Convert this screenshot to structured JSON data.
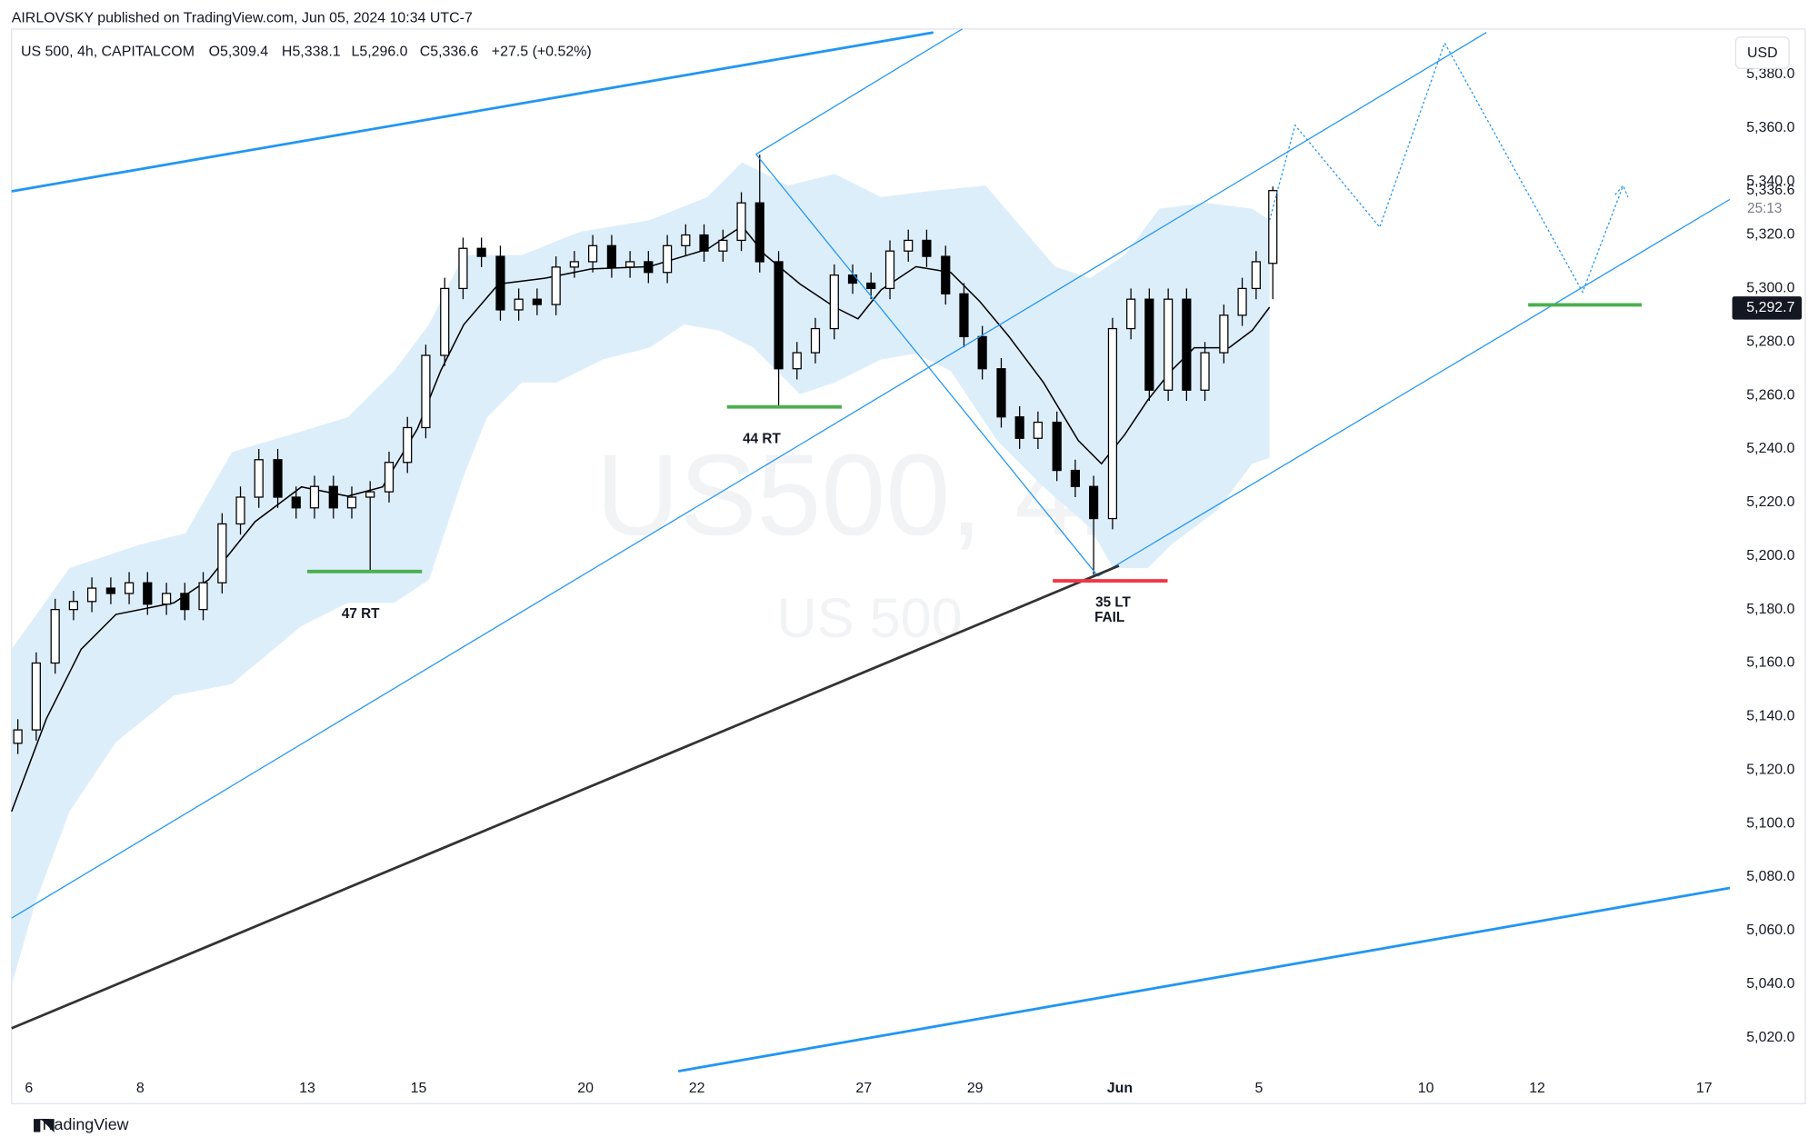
{
  "chart_data": {
    "type": "candlestick",
    "publisher": "AIRLOVSKY published on TradingView.com, Jun 05, 2024 10:34 UTC-7",
    "title": "US 500, 4h, CAPITALCOM",
    "legend_values": [
      "O5,309.4",
      "H5,338.1",
      "L5,296.0",
      "C5,336.6",
      "+27.5 (+0.52%)"
    ],
    "currency": "USD",
    "watermark": "US500, 4h",
    "watermark_sub": "US 500",
    "annotations": [
      "47 RT",
      "44 RT",
      "35 LT",
      "FAIL"
    ],
    "brand": "TradingView",
    "price_line": {
      "value": 5336.6,
      "label": "5,336.6"
    },
    "countdown": "25:13",
    "marker": {
      "value": 5292.7,
      "label": "5,292.7"
    },
    "xlim": [
      -0.3,
      30.5
    ],
    "xticks": [
      {
        "value": 0,
        "label": "6"
      },
      {
        "value": 2,
        "label": "8"
      },
      {
        "value": 5,
        "label": "13"
      },
      {
        "value": 7,
        "label": "15"
      },
      {
        "value": 10,
        "label": "20"
      },
      {
        "value": 12,
        "label": "22"
      },
      {
        "value": 15,
        "label": "27"
      },
      {
        "value": 17,
        "label": "29"
      },
      {
        "value": 19.6,
        "label": "Jun"
      },
      {
        "value": 22.1,
        "label": "5"
      },
      {
        "value": 25.1,
        "label": "10"
      },
      {
        "value": 27.1,
        "label": "12"
      },
      {
        "value": 30.1,
        "label": "17"
      }
    ],
    "ylim": [
      5007,
      5397
    ],
    "yticks": [
      {
        "value": 5020,
        "label": "5,020.0"
      },
      {
        "value": 5040,
        "label": "5,040.0"
      },
      {
        "value": 5060,
        "label": "5,060.0"
      },
      {
        "value": 5080,
        "label": "5,080.0"
      },
      {
        "value": 5100,
        "label": "5,100.0"
      },
      {
        "value": 5120,
        "label": "5,120.0"
      },
      {
        "value": 5140,
        "label": "5,140.0"
      },
      {
        "value": 5160,
        "label": "5,160.0"
      },
      {
        "value": 5180,
        "label": "5,180.0"
      },
      {
        "value": 5200,
        "label": "5,200.0"
      },
      {
        "value": 5220,
        "label": "5,220.0"
      },
      {
        "value": 5240,
        "label": "5,240.0"
      },
      {
        "value": 5260,
        "label": "5,260.0"
      },
      {
        "value": 5280,
        "label": "5,280.0"
      },
      {
        "value": 5300,
        "label": "5,300.0"
      },
      {
        "value": 5320,
        "label": "5,320.0"
      },
      {
        "value": 5340,
        "label": "5,340.0"
      },
      {
        "value": 5360,
        "label": "5,360.0"
      },
      {
        "value": 5380,
        "label": "5,380.0"
      }
    ],
    "x": [
      -0.2,
      0.13,
      0.47,
      0.8,
      1.13,
      1.47,
      1.8,
      2.13,
      2.47,
      2.8,
      3.13,
      3.47,
      3.8,
      4.13,
      4.47,
      4.8,
      5.13,
      5.47,
      5.8,
      6.13,
      6.47,
      6.8,
      7.13,
      7.47,
      7.8,
      8.13,
      8.47,
      8.8,
      9.13,
      9.47,
      9.8,
      10.13,
      10.47,
      10.8,
      11.13,
      11.47,
      11.8,
      12.13,
      12.47,
      12.8,
      13.13,
      13.47,
      13.8,
      14.13,
      14.47,
      14.8,
      15.13,
      15.47,
      15.8,
      16.13,
      16.47,
      16.8,
      17.13,
      17.47,
      17.8,
      18.13,
      18.47,
      18.8,
      19.13,
      19.47,
      19.8,
      20.13,
      20.47,
      20.8,
      21.13,
      21.47,
      21.8,
      22.05,
      22.35
    ],
    "open": [
      5130,
      5135,
      5160,
      5180,
      5183,
      5188,
      5186,
      5190,
      5182,
      5186,
      5180,
      5190,
      5212,
      5222,
      5236,
      5222,
      5218,
      5226,
      5218,
      5222,
      5224,
      5235,
      5248,
      5275,
      5300,
      5315,
      5312,
      5292,
      5296,
      5294,
      5308,
      5310,
      5316,
      5308,
      5310,
      5306,
      5316,
      5320,
      5314,
      5318,
      5332,
      5310,
      5270,
      5276,
      5285,
      5305,
      5302,
      5300,
      5314,
      5318,
      5312,
      5298,
      5282,
      5270,
      5252,
      5244,
      5250,
      5232,
      5226,
      5214,
      5285,
      5296,
      5262,
      5296,
      5262,
      5276,
      5290,
      5300,
      5309.4
    ],
    "high": [
      5139,
      5164,
      5184,
      5187,
      5192,
      5192,
      5194,
      5194,
      5190,
      5190,
      5194,
      5216,
      5226,
      5240,
      5240,
      5226,
      5230,
      5230,
      5226,
      5228,
      5239,
      5252,
      5279,
      5304,
      5319,
      5319,
      5316,
      5300,
      5300,
      5312,
      5314,
      5320,
      5320,
      5314,
      5314,
      5320,
      5324,
      5324,
      5322,
      5336,
      5350,
      5314,
      5280,
      5289,
      5309,
      5309,
      5306,
      5318,
      5322,
      5322,
      5316,
      5302,
      5286,
      5274,
      5256,
      5254,
      5254,
      5236,
      5230,
      5289,
      5300,
      5300,
      5300,
      5300,
      5280,
      5294,
      5304,
      5314,
      5338.1
    ],
    "low": [
      5126,
      5131,
      5156,
      5176,
      5179,
      5182,
      5182,
      5178,
      5178,
      5176,
      5176,
      5186,
      5208,
      5218,
      5218,
      5214,
      5214,
      5214,
      5214,
      5194,
      5220,
      5231,
      5244,
      5271,
      5296,
      5308,
      5288,
      5288,
      5290,
      5290,
      5304,
      5306,
      5304,
      5304,
      5302,
      5302,
      5312,
      5310,
      5310,
      5314,
      5306,
      5256,
      5266,
      5272,
      5281,
      5298,
      5296,
      5296,
      5310,
      5308,
      5294,
      5278,
      5266,
      5248,
      5240,
      5240,
      5228,
      5222,
      5193,
      5210,
      5281,
      5258,
      5258,
      5258,
      5258,
      5272,
      5286,
      5296,
      5296
    ],
    "close": [
      5135,
      5160,
      5180,
      5183,
      5188,
      5186,
      5190,
      5182,
      5186,
      5180,
      5190,
      5212,
      5222,
      5236,
      5222,
      5218,
      5226,
      5218,
      5222,
      5224,
      5235,
      5248,
      5275,
      5300,
      5315,
      5312,
      5292,
      5296,
      5294,
      5308,
      5310,
      5316,
      5308,
      5310,
      5306,
      5316,
      5320,
      5314,
      5318,
      5332,
      5310,
      5270,
      5276,
      5285,
      5305,
      5302,
      5300,
      5314,
      5318,
      5312,
      5298,
      5282,
      5270,
      5252,
      5244,
      5250,
      5232,
      5226,
      5214,
      5285,
      5296,
      5262,
      5296,
      5262,
      5276,
      5290,
      5300,
      5310,
      5336.6
    ],
    "up_color": "#ffffff",
    "down_color": "#000000"
  }
}
